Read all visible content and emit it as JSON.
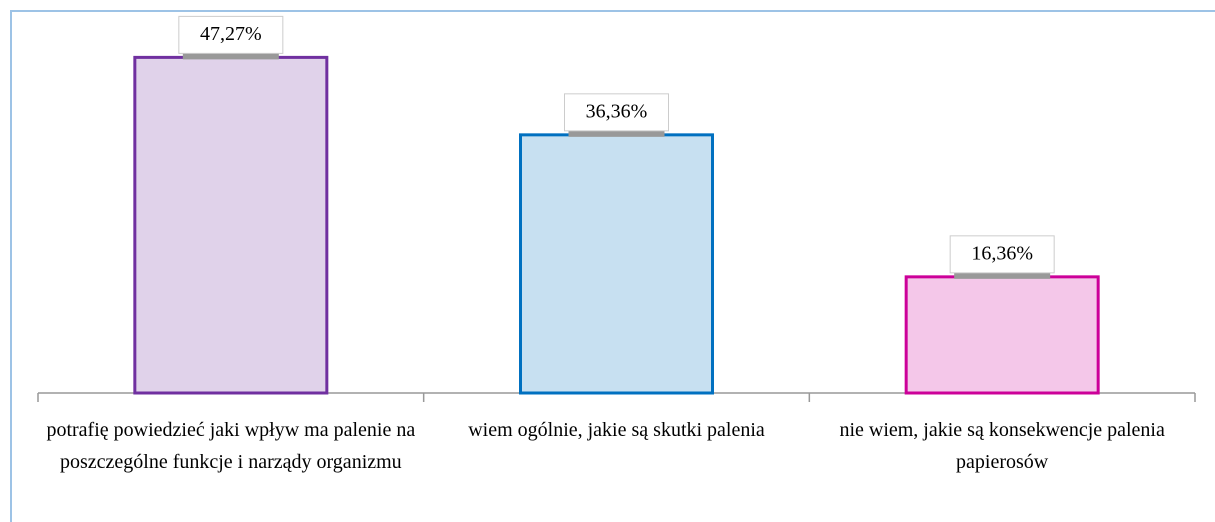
{
  "chart_data": {
    "type": "bar",
    "categories": [
      "potrafię powiedzieć jaki wpływ ma palenie na poszczególne funkcje i narządy organizmu",
      "wiem ogólnie, jakie są skutki palenia",
      "nie wiem, jakie są konsekwencje palenia papierosów"
    ],
    "values": [
      47.27,
      36.36,
      16.36
    ],
    "value_labels": [
      "47,27%",
      "36,36%",
      "16,36%"
    ],
    "colors": [
      "#7030a0",
      "#0070c0",
      "#cc0099"
    ],
    "ylim": [
      0,
      50
    ]
  }
}
